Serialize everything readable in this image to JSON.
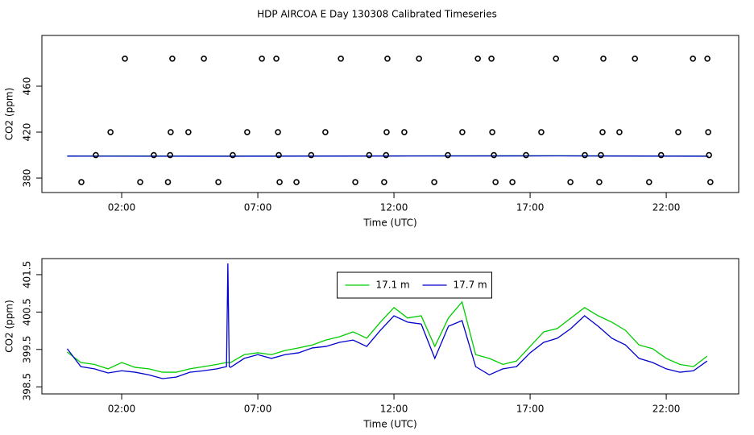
{
  "chart_data": [
    {
      "type": "scatter",
      "title": "HDP AIRCOA E  Day 130308  Calibrated Timeseries",
      "x_label": "Time (UTC)",
      "y_label": "CO2 (ppm)",
      "xlim": [
        -0.93,
        24.66
      ],
      "ylim": [
        367.4,
        504.2
      ],
      "xticks": [
        {
          "value": 2,
          "label": "02:00"
        },
        {
          "value": 7,
          "label": "07:00"
        },
        {
          "value": 12,
          "label": "12:00"
        },
        {
          "value": 17,
          "label": "17:00"
        },
        {
          "value": 22,
          "label": "22:00"
        }
      ],
      "yticks": [
        380,
        420,
        460
      ],
      "points": {
        "color": "#000000",
        "x": [
          2.12,
          3.86,
          5.02,
          7.15,
          7.68,
          10.05,
          11.76,
          12.92,
          15.08,
          15.58,
          17.95,
          19.69,
          20.85,
          22.98,
          23.51,
          1.59,
          3.8,
          4.45,
          6.61,
          7.74,
          9.48,
          11.73,
          12.38,
          14.51,
          15.61,
          17.41,
          19.66,
          20.28,
          22.44,
          23.54,
          1.05,
          3.18,
          3.78,
          6.08,
          7.77,
          8.96,
          11.09,
          11.71,
          13.98,
          15.67,
          16.85,
          19.01,
          19.6,
          21.81,
          23.57,
          0.52,
          2.68,
          3.7,
          5.55,
          7.8,
          8.42,
          10.58,
          11.64,
          13.48,
          15.73,
          16.35,
          18.48,
          19.54,
          21.37,
          23.62
        ],
        "values": [
          484,
          484,
          484,
          484,
          484,
          484,
          484,
          484,
          484,
          484,
          484,
          484,
          484,
          484,
          484,
          420,
          420,
          420,
          420,
          420,
          420,
          420,
          420,
          420,
          420,
          420,
          420,
          420,
          420,
          420,
          400,
          400,
          400,
          400,
          400,
          400,
          400,
          400,
          400,
          400,
          400,
          400,
          400,
          400,
          400,
          376.5,
          376.5,
          376.5,
          376.5,
          376.5,
          376.5,
          376.5,
          376.5,
          376.5,
          376.5,
          376.5,
          376.5,
          376.5,
          376.5,
          376.5
        ]
      },
      "series": [
        {
          "color": "#00cc00",
          "x": [
            0,
            6,
            12,
            18,
            23.55
          ],
          "values": [
            399.2,
            399.1,
            399.3,
            399.4,
            399.1
          ]
        },
        {
          "color": "#0000cc",
          "x": [
            0,
            6,
            12,
            18,
            23.55
          ],
          "values": [
            399.1,
            399,
            399.2,
            399.3,
            399
          ]
        }
      ]
    },
    {
      "type": "line",
      "x_label": "Time (UTC)",
      "y_label": "CO2 (ppm)",
      "xlim": [
        -0.93,
        24.66
      ],
      "ylim": [
        398.31,
        401.93
      ],
      "xticks": [
        {
          "value": 2,
          "label": "02:00"
        },
        {
          "value": 7,
          "label": "07:00"
        },
        {
          "value": 12,
          "label": "12:00"
        },
        {
          "value": 17,
          "label": "17:00"
        },
        {
          "value": 22,
          "label": "22:00"
        }
      ],
      "yticks": [
        398.5,
        399.5,
        400.5,
        401.5
      ],
      "legend": "top-center",
      "x": [
        0,
        0.5,
        1,
        1.5,
        2,
        2.5,
        3,
        3.5,
        4,
        4.5,
        5,
        5.5,
        5.85,
        5.9,
        5.95,
        6,
        6.5,
        7,
        7.5,
        8,
        8.5,
        9,
        9.5,
        10,
        10.5,
        11,
        11.5,
        12,
        12.5,
        13,
        13.5,
        14,
        14.5,
        15,
        15.5,
        16,
        16.5,
        17,
        17.5,
        18,
        18.5,
        19,
        19.5,
        20,
        20.5,
        21,
        21.5,
        22,
        22.5,
        23,
        23.5
      ],
      "series": [
        {
          "name": "17.1 m",
          "color": "#00cc00",
          "values": [
            399.43,
            399.15,
            399.1,
            398.98,
            399.15,
            399.02,
            398.98,
            398.89,
            398.89,
            398.98,
            399.04,
            399.1,
            399.15,
            399.15,
            399.15,
            399.15,
            399.36,
            399.41,
            399.36,
            399.47,
            399.54,
            399.62,
            399.75,
            399.84,
            399.97,
            399.8,
            400.23,
            400.62,
            400.34,
            400.4,
            399.58,
            400.34,
            400.77,
            399.36,
            399.26,
            399.1,
            399.19,
            399.58,
            399.97,
            400.06,
            400.34,
            400.62,
            400.4,
            400.23,
            400.01,
            399.62,
            399.52,
            399.26,
            399.1,
            399.04,
            399.32
          ]
        },
        {
          "name": "17.7 m",
          "color": "#0000cc",
          "values": [
            399.52,
            399.04,
            398.98,
            398.87,
            398.93,
            398.89,
            398.82,
            398.72,
            398.76,
            398.89,
            398.93,
            398.98,
            399.04,
            401.8,
            399.04,
            399.02,
            399.26,
            399.36,
            399.26,
            399.36,
            399.41,
            399.54,
            399.58,
            399.69,
            399.75,
            399.58,
            400.01,
            400.4,
            400.23,
            400.18,
            399.26,
            400.12,
            400.27,
            399.04,
            398.82,
            398.98,
            399.04,
            399.41,
            399.69,
            399.8,
            400.06,
            400.4,
            400.12,
            399.8,
            399.62,
            399.26,
            399.15,
            398.98,
            398.89,
            398.93,
            399.19
          ]
        }
      ]
    }
  ]
}
